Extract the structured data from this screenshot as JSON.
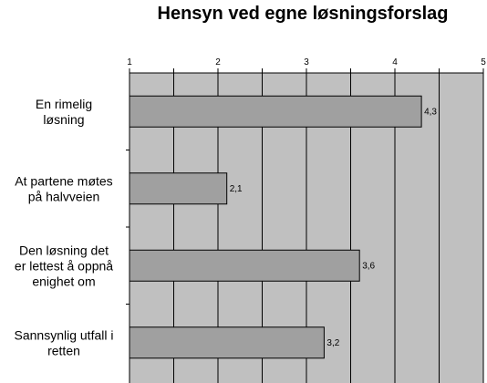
{
  "chart_data": {
    "type": "bar",
    "orientation": "horizontal",
    "title": "Hensyn ved egne løsningsforslag",
    "categories": [
      [
        "En rimelig",
        "løsning"
      ],
      [
        "At partene møtes",
        "på halvveien"
      ],
      [
        "Den løsning det",
        "er lettest å oppnå",
        "enighet om"
      ],
      [
        "Sannsynlig utfall i",
        "retten"
      ]
    ],
    "values": [
      4.3,
      2.1,
      3.6,
      3.2
    ],
    "value_labels": [
      "4,3",
      "2,1",
      "3,6",
      "3,2"
    ],
    "xlim": [
      1,
      5
    ],
    "xticks": [
      1,
      1.5,
      2,
      2.5,
      3,
      3.5,
      4,
      4.5,
      5
    ],
    "xtick_labels": [
      "1",
      "",
      "2",
      "",
      "3",
      "",
      "4",
      "",
      "5"
    ],
    "axis_position": "top",
    "grid": true,
    "xlabel": "",
    "ylabel": "",
    "colors": {
      "plot_background": "#c0c0c0",
      "bar_fill": "#a0a0a0",
      "bar_stroke": "#000000",
      "grid": "#000000"
    }
  }
}
